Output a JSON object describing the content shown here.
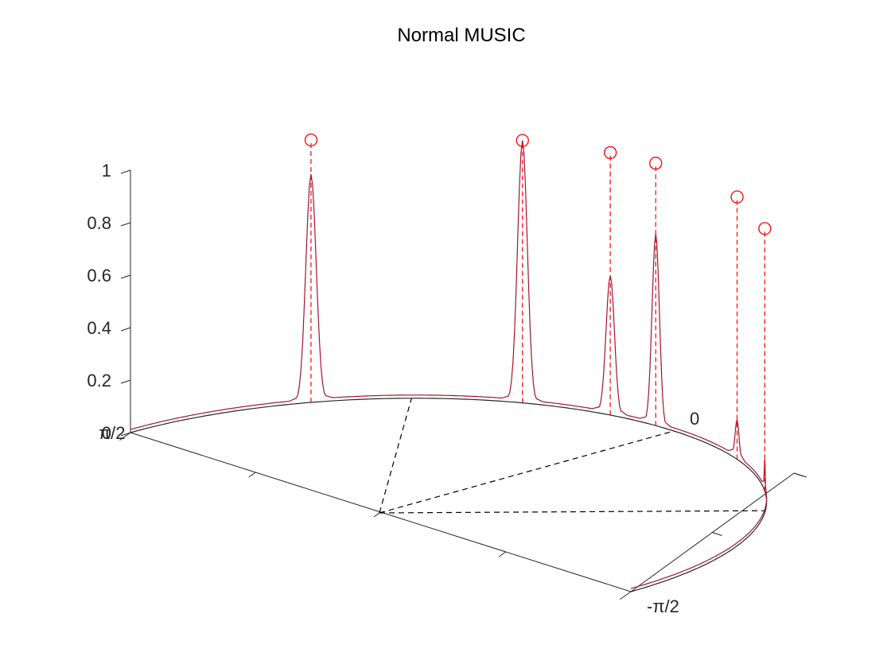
{
  "chart_data": {
    "type": "line",
    "title": "Normal MUSIC",
    "z_ticks": [
      "0",
      "0.2",
      "0.4",
      "0.6",
      "0.8",
      "1"
    ],
    "angle_labels": [
      "π/2",
      "0",
      "-π/2"
    ],
    "zlim": [
      0,
      1
    ],
    "angle_range_deg": [
      -90,
      90
    ],
    "spectrum_peaks": [
      {
        "angle_deg": 60,
        "height": 0.87
      },
      {
        "angle_deg": 28,
        "height": 1.0
      },
      {
        "angle_deg": 13,
        "height": 0.53
      },
      {
        "angle_deg": 4,
        "height": 0.73
      },
      {
        "angle_deg": -18,
        "height": 0.15
      },
      {
        "angle_deg": -35,
        "height": 0.12
      }
    ],
    "true_directions": [
      {
        "angle_deg": 60,
        "height": 1.0
      },
      {
        "angle_deg": 28,
        "height": 1.0
      },
      {
        "angle_deg": 13,
        "height": 1.0
      },
      {
        "angle_deg": 4,
        "height": 1.0
      },
      {
        "angle_deg": -18,
        "height": 1.0
      },
      {
        "angle_deg": -35,
        "height": 1.0
      }
    ],
    "spoke_angles_deg": [
      45,
      0,
      -45
    ],
    "colors": {
      "spectrum": "#a2142f",
      "true_directions": "#ff0000",
      "axes": "#262626",
      "spokes": "#000000"
    },
    "grid": false
  }
}
